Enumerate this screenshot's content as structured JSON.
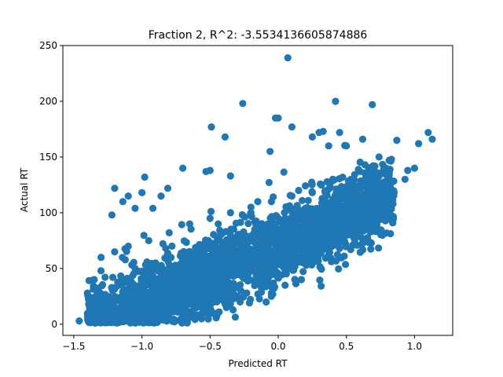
{
  "chart_data": {
    "type": "scatter",
    "title": "Fraction 2, R^2: -3.5534136605874886",
    "xlabel": "Predicted RT",
    "ylabel": "Actual RT",
    "xlim": [
      -1.58,
      1.28
    ],
    "ylim": [
      -10,
      250
    ],
    "xticks": [
      -1.5,
      -1.0,
      -0.5,
      0.0,
      0.5,
      1.0
    ],
    "xtick_labels": [
      "−1.5",
      "−1.0",
      "−0.5",
      "0.0",
      "0.5",
      "1.0"
    ],
    "yticks": [
      0,
      50,
      100,
      150,
      200,
      250
    ],
    "ytick_labels": [
      "0",
      "50",
      "100",
      "150",
      "200",
      "250"
    ],
    "grid": false,
    "color": "#1f77b4",
    "series": [
      {
        "points": [
          [
            0.07,
            239
          ],
          [
            -0.26,
            198
          ],
          [
            0.42,
            200
          ],
          [
            0.69,
            197
          ],
          [
            -0.02,
            185
          ],
          [
            0.0,
            185
          ],
          [
            0.1,
            177
          ],
          [
            -0.49,
            177
          ],
          [
            0.3,
            172
          ],
          [
            0.33,
            173
          ],
          [
            0.45,
            172
          ],
          [
            -0.39,
            168
          ],
          [
            1.1,
            172
          ],
          [
            1.13,
            166
          ],
          [
            1.03,
            162
          ],
          [
            0.62,
            166
          ],
          [
            0.25,
            168
          ],
          [
            0.37,
            160
          ],
          [
            -0.06,
            155
          ],
          [
            0.87,
            165
          ],
          [
            0.5,
            160
          ],
          [
            -0.7,
            140
          ],
          [
            -0.5,
            138
          ],
          [
            -0.53,
            137
          ],
          [
            -0.98,
            132
          ],
          [
            -0.35,
            133
          ],
          [
            0.83,
            148
          ],
          [
            0.74,
            150
          ],
          [
            0.95,
            138
          ],
          [
            1.0,
            140
          ],
          [
            0.93,
            130
          ],
          [
            0.4,
            130
          ],
          [
            -1.2,
            122
          ],
          [
            -1.1,
            115
          ],
          [
            -0.81,
            122
          ],
          [
            -0.86,
            115
          ],
          [
            -1.0,
            118
          ],
          [
            -1.14,
            110
          ],
          [
            -1.22,
            98
          ],
          [
            -1.05,
            104
          ],
          [
            -0.92,
            104
          ],
          [
            -0.44,
            90
          ],
          [
            -0.2,
            100
          ],
          [
            0.22,
            111
          ],
          [
            0.6,
            108
          ],
          [
            0.78,
            118
          ],
          [
            0.85,
            118
          ],
          [
            0.55,
            120
          ],
          [
            0.44,
            102
          ],
          [
            0.3,
            100
          ],
          [
            0.15,
            120
          ],
          [
            -0.15,
            110
          ],
          [
            0.56,
            85
          ],
          [
            0.48,
            88
          ],
          [
            0.4,
            75
          ],
          [
            0.45,
            75
          ],
          [
            0.1,
            58
          ],
          [
            0.05,
            52
          ],
          [
            -0.1,
            60
          ],
          [
            -0.3,
            55
          ],
          [
            -0.55,
            48
          ],
          [
            -0.7,
            40
          ],
          [
            -0.85,
            34
          ],
          [
            -1.0,
            30
          ],
          [
            -1.2,
            22
          ],
          [
            -1.3,
            18
          ],
          [
            -1.4,
            28
          ],
          [
            -1.46,
            3
          ],
          [
            -1.2,
            2
          ],
          [
            -1.05,
            5
          ],
          [
            -0.9,
            8
          ],
          [
            -0.75,
            12
          ],
          [
            -0.6,
            15
          ],
          [
            -0.45,
            20
          ],
          [
            -0.3,
            24
          ],
          [
            -0.05,
            28
          ],
          [
            0.05,
            35
          ],
          [
            0.17,
            40
          ],
          [
            -0.38,
            15
          ],
          [
            -0.28,
            20
          ],
          [
            -0.05,
            25
          ],
          [
            -1.3,
            60
          ],
          [
            -1.2,
            65
          ],
          [
            -1.1,
            70
          ],
          [
            -0.95,
            75
          ],
          [
            -0.8,
            82
          ],
          [
            -0.65,
            90
          ],
          [
            -0.5,
            95
          ],
          [
            -0.35,
            100
          ],
          [
            -0.2,
            105
          ],
          [
            -0.05,
            110
          ],
          [
            0.1,
            115
          ],
          [
            0.25,
            118
          ],
          [
            0.4,
            112
          ],
          [
            0.55,
            110
          ],
          [
            -0.6,
            55
          ],
          [
            -0.4,
            65
          ],
          [
            -0.2,
            75
          ],
          [
            0.0,
            85
          ],
          [
            0.2,
            92
          ],
          [
            0.35,
            95
          ],
          [
            -0.8,
            45
          ],
          [
            -1.0,
            40
          ],
          [
            -1.15,
            35
          ],
          [
            -1.35,
            40
          ],
          [
            -0.25,
            45
          ],
          [
            -0.1,
            50
          ],
          [
            0.3,
            70
          ],
          [
            -0.7,
            60
          ],
          [
            -0.9,
            55
          ],
          [
            -1.05,
            50
          ],
          [
            -0.55,
            70
          ],
          [
            -0.35,
            80
          ],
          [
            -0.15,
            88
          ],
          [
            0.05,
            95
          ],
          [
            0.25,
            100
          ],
          [
            -0.45,
            40
          ],
          [
            -0.65,
            30
          ],
          [
            -0.85,
            25
          ],
          [
            -0.15,
            65
          ]
        ]
      }
    ]
  }
}
